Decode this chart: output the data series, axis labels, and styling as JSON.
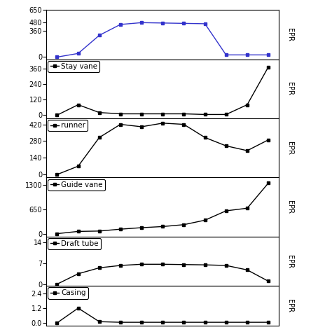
{
  "x": [
    1,
    2,
    3,
    4,
    5,
    6,
    7,
    8,
    9,
    10,
    11
  ],
  "total": [
    0,
    50,
    300,
    450,
    475,
    470,
    465,
    460,
    30,
    30,
    30
  ],
  "stay_vane": [
    0,
    80,
    20,
    10,
    10,
    10,
    10,
    5,
    5,
    80,
    370
  ],
  "runner": [
    0,
    70,
    310,
    420,
    400,
    430,
    420,
    310,
    240,
    200,
    290
  ],
  "guide_vane": [
    0,
    60,
    70,
    120,
    160,
    190,
    240,
    360,
    610,
    680,
    1350
  ],
  "draft_tube": [
    0,
    3.5,
    5.5,
    6.3,
    6.7,
    6.7,
    6.6,
    6.5,
    6.3,
    4.8,
    1.0
  ],
  "casing": [
    0,
    1.2,
    0.1,
    0.05,
    0.05,
    0.05,
    0.05,
    0.05,
    0.05,
    0.05,
    0.05
  ],
  "total_yticks": [
    0,
    360,
    480,
    650
  ],
  "total_ylim": [
    -30,
    580
  ],
  "stay_vane_yticks": [
    0,
    120,
    240,
    360
  ],
  "stay_vane_ylim": [
    -25,
    430
  ],
  "runner_yticks": [
    0,
    140,
    280,
    420
  ],
  "runner_ylim": [
    -25,
    470
  ],
  "guide_vane_yticks": [
    0,
    650,
    1300
  ],
  "guide_vane_ylim": [
    -80,
    1500
  ],
  "draft_tube_yticks": [
    0,
    7,
    14
  ],
  "draft_tube_ylim": [
    -0.6,
    16
  ],
  "casing_yticks": [
    0,
    1.2,
    2.4
  ],
  "casing_ylim": [
    -0.2,
    3.0
  ],
  "epr_label": "EPR",
  "line_color_total": "#3333cc",
  "line_color_others": "#000000",
  "marker": "s",
  "panels_height_ratios": [
    1,
    1.2,
    1.2,
    1.2,
    1.0,
    0.8
  ]
}
